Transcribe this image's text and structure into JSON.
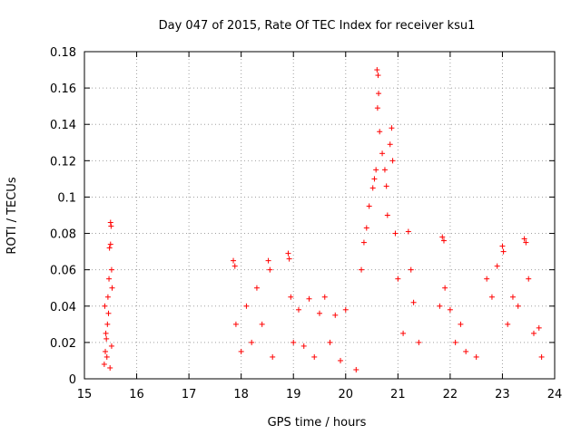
{
  "chart_data": {
    "type": "scatter",
    "title": "Day 047 of 2015, Rate Of TEC Index for receiver ksu1",
    "xlabel": "GPS time / hours",
    "ylabel": "ROTI / TECUs",
    "xlim": [
      15,
      24
    ],
    "ylim": [
      0,
      0.18
    ],
    "xticks": [
      "15",
      "16",
      "17",
      "18",
      "19",
      "20",
      "21",
      "22",
      "23",
      "24"
    ],
    "yticks": [
      "0",
      "0.02",
      "0.04",
      "0.06",
      "0.08",
      "0.1",
      "0.12",
      "0.14",
      "0.16",
      "0.18"
    ],
    "grid": true,
    "marker": "+",
    "color": "#ff0000",
    "series": [
      {
        "name": "ROTI",
        "points": [
          [
            15.38,
            0.008
          ],
          [
            15.4,
            0.015
          ],
          [
            15.42,
            0.022
          ],
          [
            15.44,
            0.03
          ],
          [
            15.45,
            0.045
          ],
          [
            15.47,
            0.055
          ],
          [
            15.48,
            0.072
          ],
          [
            15.5,
            0.086
          ],
          [
            15.51,
            0.084
          ],
          [
            15.5,
            0.074
          ],
          [
            15.52,
            0.06
          ],
          [
            15.53,
            0.05
          ],
          [
            15.46,
            0.036
          ],
          [
            15.43,
            0.012
          ],
          [
            15.49,
            0.006
          ],
          [
            15.41,
            0.025
          ],
          [
            15.52,
            0.018
          ],
          [
            15.39,
            0.04
          ],
          [
            17.85,
            0.065
          ],
          [
            17.88,
            0.062
          ],
          [
            17.9,
            0.03
          ],
          [
            18.0,
            0.015
          ],
          [
            18.1,
            0.04
          ],
          [
            18.2,
            0.02
          ],
          [
            18.3,
            0.05
          ],
          [
            18.4,
            0.03
          ],
          [
            18.52,
            0.065
          ],
          [
            18.55,
            0.06
          ],
          [
            18.6,
            0.012
          ],
          [
            18.9,
            0.069
          ],
          [
            18.92,
            0.066
          ],
          [
            18.95,
            0.045
          ],
          [
            19.0,
            0.02
          ],
          [
            19.1,
            0.038
          ],
          [
            19.2,
            0.018
          ],
          [
            19.3,
            0.044
          ],
          [
            19.4,
            0.012
          ],
          [
            19.5,
            0.036
          ],
          [
            19.6,
            0.045
          ],
          [
            19.7,
            0.02
          ],
          [
            19.8,
            0.035
          ],
          [
            19.9,
            0.01
          ],
          [
            20.0,
            0.038
          ],
          [
            20.2,
            0.005
          ],
          [
            20.3,
            0.06
          ],
          [
            20.35,
            0.075
          ],
          [
            20.4,
            0.083
          ],
          [
            20.45,
            0.095
          ],
          [
            20.52,
            0.105
          ],
          [
            20.55,
            0.11
          ],
          [
            20.58,
            0.115
          ],
          [
            20.6,
            0.17
          ],
          [
            20.62,
            0.167
          ],
          [
            20.63,
            0.157
          ],
          [
            20.61,
            0.149
          ],
          [
            20.65,
            0.136
          ],
          [
            20.7,
            0.124
          ],
          [
            20.75,
            0.115
          ],
          [
            20.78,
            0.106
          ],
          [
            20.8,
            0.09
          ],
          [
            20.85,
            0.129
          ],
          [
            20.88,
            0.138
          ],
          [
            20.9,
            0.12
          ],
          [
            20.95,
            0.08
          ],
          [
            21.0,
            0.055
          ],
          [
            21.1,
            0.025
          ],
          [
            21.2,
            0.081
          ],
          [
            21.25,
            0.06
          ],
          [
            21.3,
            0.042
          ],
          [
            21.4,
            0.02
          ],
          [
            21.8,
            0.04
          ],
          [
            21.85,
            0.078
          ],
          [
            21.88,
            0.076
          ],
          [
            21.9,
            0.05
          ],
          [
            22.0,
            0.038
          ],
          [
            22.1,
            0.02
          ],
          [
            22.2,
            0.03
          ],
          [
            22.3,
            0.015
          ],
          [
            22.5,
            0.012
          ],
          [
            22.7,
            0.055
          ],
          [
            22.8,
            0.045
          ],
          [
            22.9,
            0.062
          ],
          [
            23.0,
            0.073
          ],
          [
            23.02,
            0.07
          ],
          [
            23.1,
            0.03
          ],
          [
            23.2,
            0.045
          ],
          [
            23.3,
            0.04
          ],
          [
            23.42,
            0.077
          ],
          [
            23.45,
            0.075
          ],
          [
            23.5,
            0.055
          ],
          [
            23.6,
            0.025
          ],
          [
            23.7,
            0.028
          ],
          [
            23.75,
            0.012
          ]
        ]
      }
    ]
  }
}
